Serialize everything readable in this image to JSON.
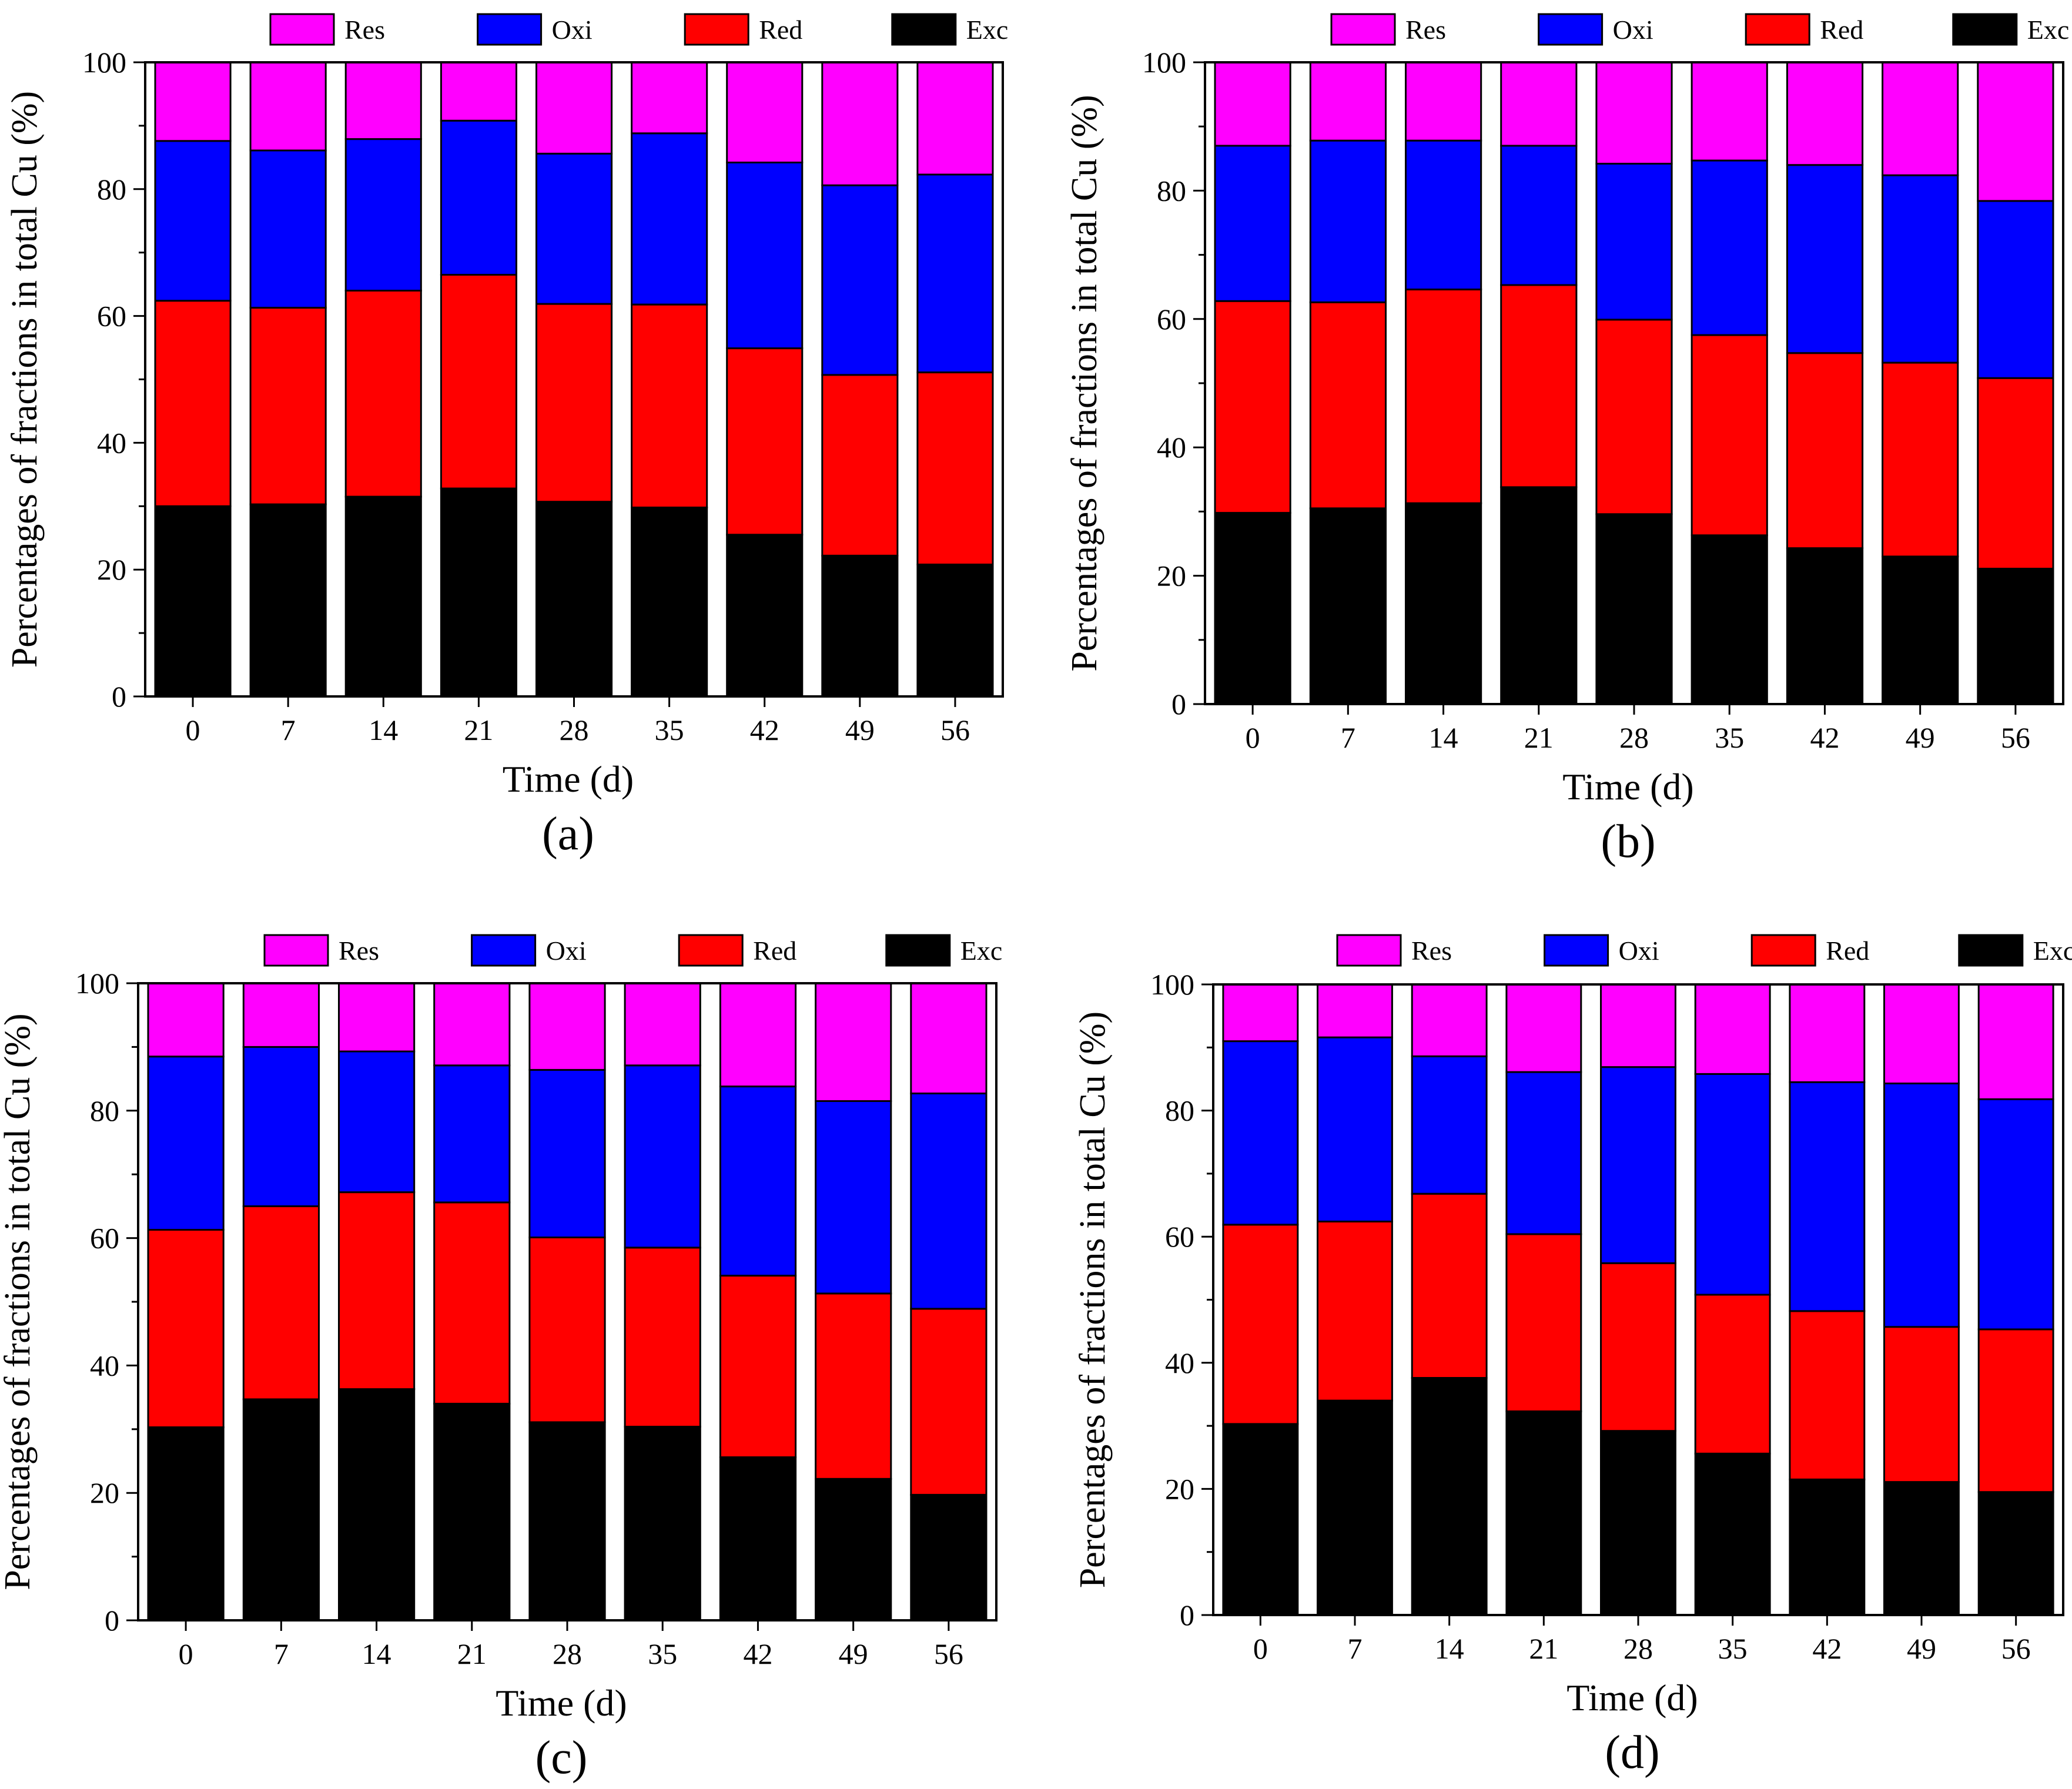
{
  "figure": {
    "legend_order": [
      "Res",
      "Oxi",
      "Red",
      "Exc"
    ],
    "colors": {
      "Res": "#ff00ff",
      "Oxi": "#0000ff",
      "Red": "#ff0000",
      "Exc": "#000000"
    }
  },
  "chart_data": [
    {
      "type": "bar",
      "stacked": true,
      "panel_label": "(a)",
      "xlabel": "Time (d)",
      "ylabel": "Percentages of fractions in total Cu (%)",
      "categories": [
        "0",
        "7",
        "14",
        "21",
        "28",
        "35",
        "42",
        "49",
        "56"
      ],
      "ylim": [
        0,
        100
      ],
      "yticks": [
        0,
        20,
        40,
        60,
        80,
        100
      ],
      "legend_position": "top",
      "series": [
        {
          "name": "Exc",
          "values": [
            30.0,
            30.3,
            31.5,
            32.8,
            30.7,
            29.8,
            25.5,
            22.2,
            20.8
          ]
        },
        {
          "name": "Red",
          "values": [
            32.4,
            31.0,
            32.5,
            33.7,
            31.2,
            32.0,
            29.4,
            28.5,
            30.3
          ]
        },
        {
          "name": "Oxi",
          "values": [
            25.2,
            24.8,
            23.9,
            24.3,
            23.7,
            27.0,
            29.3,
            29.9,
            31.2
          ]
        },
        {
          "name": "Res",
          "values": [
            12.4,
            13.9,
            12.1,
            9.2,
            14.4,
            11.2,
            15.8,
            19.4,
            17.7
          ]
        }
      ]
    },
    {
      "type": "bar",
      "stacked": true,
      "panel_label": "(b)",
      "xlabel": "Time (d)",
      "ylabel": "Percentages of fractions in total Cu (%)",
      "categories": [
        "0",
        "7",
        "14",
        "21",
        "28",
        "35",
        "42",
        "49",
        "56"
      ],
      "ylim": [
        0,
        100
      ],
      "yticks": [
        0,
        20,
        40,
        60,
        80,
        100
      ],
      "legend_position": "top",
      "series": [
        {
          "name": "Exc",
          "values": [
            29.8,
            30.5,
            31.3,
            33.8,
            29.6,
            26.3,
            24.3,
            23.0,
            21.1
          ]
        },
        {
          "name": "Red",
          "values": [
            33.0,
            32.1,
            33.3,
            31.5,
            30.3,
            31.2,
            30.4,
            30.2,
            29.7
          ]
        },
        {
          "name": "Oxi",
          "values": [
            24.2,
            25.2,
            23.2,
            21.7,
            24.3,
            27.2,
            29.3,
            29.2,
            27.6
          ]
        },
        {
          "name": "Res",
          "values": [
            13.0,
            12.2,
            12.2,
            13.0,
            15.8,
            15.3,
            16.0,
            17.6,
            21.6
          ]
        }
      ]
    },
    {
      "type": "bar",
      "stacked": true,
      "panel_label": "(c)",
      "xlabel": "Time (d)",
      "ylabel": "Percentages of fractions in total Cu (%)",
      "categories": [
        "0",
        "7",
        "14",
        "21",
        "28",
        "35",
        "42",
        "49",
        "56"
      ],
      "ylim": [
        0,
        100
      ],
      "yticks": [
        0,
        20,
        40,
        60,
        80,
        100
      ],
      "legend_position": "top",
      "series": [
        {
          "name": "Exc",
          "values": [
            30.3,
            34.7,
            36.3,
            34.0,
            31.1,
            30.4,
            25.6,
            22.2,
            19.7
          ]
        },
        {
          "name": "Red",
          "values": [
            31.0,
            30.3,
            30.9,
            31.6,
            29.0,
            28.1,
            28.5,
            29.1,
            29.2
          ]
        },
        {
          "name": "Oxi",
          "values": [
            27.2,
            25.0,
            22.1,
            21.5,
            26.3,
            28.6,
            29.7,
            30.2,
            33.8
          ]
        },
        {
          "name": "Res",
          "values": [
            11.5,
            10.0,
            10.7,
            12.9,
            13.6,
            12.9,
            16.2,
            18.5,
            17.3
          ]
        }
      ]
    },
    {
      "type": "bar",
      "stacked": true,
      "panel_label": "(d)",
      "xlabel": "Time (d)",
      "ylabel": "Percentages of fractions in total Cu (%)",
      "categories": [
        "0",
        "7",
        "14",
        "21",
        "28",
        "35",
        "42",
        "49",
        "56"
      ],
      "ylim": [
        0,
        100
      ],
      "yticks": [
        0,
        20,
        40,
        60,
        80,
        100
      ],
      "legend_position": "top",
      "series": [
        {
          "name": "Exc",
          "values": [
            30.3,
            34.0,
            37.6,
            32.3,
            29.2,
            25.6,
            21.5,
            21.1,
            19.5
          ]
        },
        {
          "name": "Red",
          "values": [
            31.6,
            28.4,
            29.2,
            28.1,
            26.6,
            25.2,
            26.7,
            24.6,
            25.8
          ]
        },
        {
          "name": "Oxi",
          "values": [
            29.1,
            29.2,
            21.8,
            25.7,
            31.1,
            35.0,
            36.3,
            38.6,
            36.5
          ]
        },
        {
          "name": "Res",
          "values": [
            9.0,
            8.4,
            11.4,
            13.9,
            13.1,
            14.2,
            15.5,
            15.7,
            18.2
          ]
        }
      ]
    }
  ]
}
